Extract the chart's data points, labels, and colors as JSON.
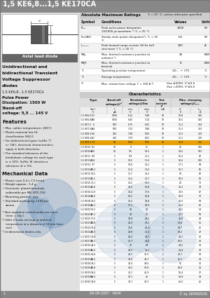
{
  "title": "1,5 KE6,8...1,5 KE170CA",
  "title_bg": "#888888",
  "title_color": "#ffffff",
  "panel_bg": "#e8e8e8",
  "footer_bg": "#888888",
  "footer_text": "09-09-2007   MAM",
  "footer_right": "© by SEMIKRON",
  "page_num": "1",
  "abs_max_rows": [
    [
      "Pₚₚₖ",
      "Peak pulse power dissipation\n10/1000 µs waveform ¹) Tₐ = 25 °C",
      "1500",
      "W"
    ],
    [
      "Pₐv(AV)",
      "Steady state power dissipation²), Tₐ = 25\n°C",
      "6,5",
      "W"
    ],
    [
      "Iₘₘₘₘ",
      "Peak forward surge current, 60 Hz half\nsine wave ¹) Tₐ = 25 °C",
      "200",
      "A"
    ],
    [
      "RθJₐ",
      "Max. thermal resistance junction to\nambient ²)",
      "20",
      "K/W"
    ],
    [
      "RθJT",
      "Max. thermal resistance junction to\nterminal",
      "8",
      "K/W"
    ],
    [
      "Tⱼ",
      "Operating junction temperature",
      "-50 ... + 175",
      "°C"
    ],
    [
      "Tₛ",
      "Storage temperature",
      "-50 ... + 175",
      "°C"
    ],
    [
      "Vᶜ",
      "Max. instant fuse voltage Iᶜ = 100 A ³)",
      "Vᴀᴀ ≤200V, Vᶜ≤3,5\nVᴀᴀ >200V, Vᶜ≤5,0",
      "",
      "V"
    ]
  ],
  "char_rows": [
    [
      "1,5 KE6,8",
      "5,5",
      "1000",
      "6,12",
      "7,48",
      "10",
      "10,8",
      "140"
    ],
    [
      "1,5 KE6,8A",
      "5,8",
      "1000",
      "6,45",
      "7,14",
      "10",
      "10,5",
      "150"
    ],
    [
      "1,5 KE7,5",
      "6",
      "500",
      "6,75",
      "8,25",
      "10",
      "11,3",
      "134"
    ],
    [
      "1,5 KE7,5A",
      "6,4",
      "500",
      "7,13",
      "7,88",
      "10",
      "11,3",
      "133"
    ],
    [
      "1,5 KE8,2",
      "6,6",
      "200",
      "7,38",
      "9,02",
      "10",
      "12,5",
      "120"
    ],
    [
      "1,5 KE8,2A",
      "7",
      "200",
      "7,79",
      "8,61",
      "10",
      "12,1",
      "120"
    ],
    [
      "1,5 KE9,1",
      "7,3",
      "50",
      "8,19",
      "9,55",
      "10",
      "13,4",
      "112"
    ],
    [
      "1,5 KE10",
      "8,1",
      "10",
      "9",
      "11",
      "1",
      "15",
      "100"
    ],
    [
      "1,5 KE10A",
      "8,5",
      "10",
      "9,5",
      "10,5",
      "1",
      "14,5",
      "103"
    ],
    [
      "1,5 KE11",
      "8,9",
      "5",
      "9,9",
      "12,1",
      "1",
      "16,2",
      "97"
    ],
    [
      "1,5 KE11A",
      "9,4",
      "5",
      "10,5",
      "11,6",
      "1",
      "15,6",
      "100"
    ],
    [
      "1,5 KE12",
      "9,7",
      "5",
      "10,8",
      "13,2",
      "1",
      "17,1",
      "94"
    ],
    [
      "1,5 KE12A",
      "10,2",
      "5",
      "11,4",
      "12,6",
      "1",
      "16,7",
      "95"
    ],
    [
      "1,5 KE13",
      "10,5",
      "5",
      "11,7",
      "14,3",
      "1",
      "19",
      "82"
    ],
    [
      "1,5 KE13A",
      "11,1",
      "5",
      "12,4",
      "13,7",
      "1",
      "18,2",
      "86"
    ],
    [
      "1,5 KE15",
      "12,1",
      "5",
      "13,5",
      "16,5",
      "1",
      "22",
      "71"
    ],
    [
      "1,5 KE15A",
      "12,8",
      "5",
      "14,3",
      "15,8",
      "1",
      "21,2",
      "74"
    ],
    [
      "1,5 KE16",
      "12,9",
      "5",
      "14,4",
      "17,6",
      "1",
      "23,5",
      "67"
    ],
    [
      "1,5 KE16A",
      "13,6",
      "5",
      "15,2",
      "16,8",
      "1",
      "22,5",
      "70"
    ],
    [
      "1,5 KE18",
      "14,5",
      "5",
      "16,2",
      "19,8",
      "1",
      "26,5",
      "59"
    ],
    [
      "1,5 KE18A",
      "15,3",
      "5",
      "17,1",
      "18,9",
      "1",
      "25,5",
      "62"
    ],
    [
      "1,5 KE20",
      "16,2",
      "5",
      "18",
      "22",
      "1",
      "28,1",
      "54"
    ],
    [
      "1,5 KE20A",
      "17,1",
      "5",
      "19",
      "21",
      "1",
      "27,7",
      "58"
    ],
    [
      "1,5 KE22",
      "17,6",
      "5",
      "19,8",
      "24,2",
      "1",
      "31,9",
      "49"
    ],
    [
      "1,5 KE22A",
      "18,8",
      "5",
      "20,9",
      "23,1",
      "1",
      "30,6",
      "51"
    ],
    [
      "1,5 KE24",
      "19,4",
      "5",
      "21,6",
      "26,4",
      "1",
      "34,7",
      "45"
    ],
    [
      "1,5 KE24A",
      "20,5",
      "5",
      "22,8",
      "25,2",
      "1",
      "33,2",
      "47"
    ],
    [
      "1,5 KE27",
      "21,8",
      "5",
      "24,3",
      "29,7",
      "1",
      "39,1",
      "40"
    ],
    [
      "1,5 KE27A",
      "23,1",
      "5",
      "25,7",
      "28,4",
      "1",
      "37,5",
      "42"
    ],
    [
      "1,5 KE30",
      "24,3",
      "5",
      "27",
      "33",
      "1",
      "41,5",
      "38"
    ],
    [
      "1,5 KE30A",
      "25,6",
      "5",
      "28,5",
      "31,5",
      "1",
      "41,4",
      "38"
    ],
    [
      "1,5 KE33",
      "26,8",
      "5",
      "29,7",
      "36,3",
      "1",
      "47,7",
      "33"
    ],
    [
      "1,5 KE33A",
      "28,2",
      "5",
      "31,4",
      "34,7",
      "1",
      "45,7",
      "34"
    ],
    [
      "1,5 KE36",
      "29,1",
      "5",
      "32,4",
      "39,6",
      "1",
      "52",
      "30"
    ],
    [
      "1,5 KE36A",
      "30,8",
      "5",
      "34,2",
      "37,8",
      "1",
      "49,9",
      "31"
    ],
    [
      "1,5 KE39",
      "31,6",
      "5",
      "35,1",
      "42,9",
      "1",
      "56,4",
      "27"
    ],
    [
      "1,5 KE39A",
      "33,3",
      "5",
      "37,1",
      "41",
      "1",
      "53,9",
      "29"
    ],
    [
      "1,5 KE43",
      "34,8",
      "5",
      "38,7",
      "47,3",
      "1",
      "61,9",
      "26"
    ]
  ],
  "highlight_row": 6
}
